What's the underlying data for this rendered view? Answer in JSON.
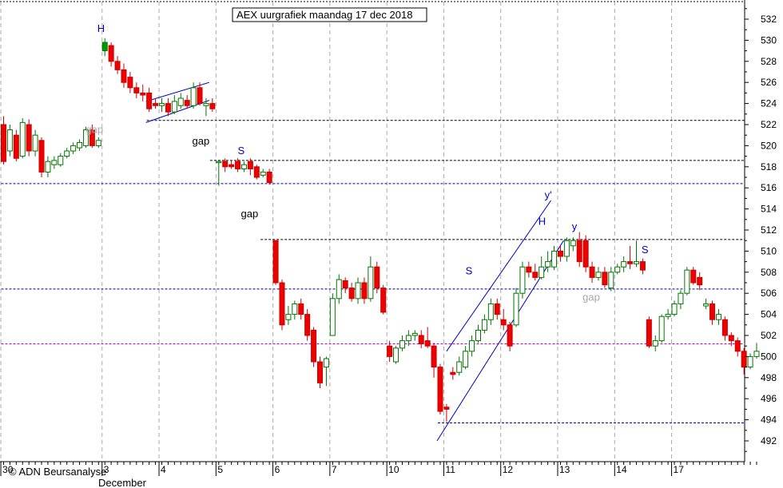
{
  "chart_data": {
    "type": "candlestick",
    "title": "AEX uurgrafiek maandag 17 dec 2018",
    "credit": "© ADN Beursanalyse",
    "month_label": "December",
    "ylim": [
      490,
      533
    ],
    "y_ticks": [
      492,
      494,
      496,
      498,
      500,
      502,
      504,
      506,
      508,
      510,
      512,
      514,
      516,
      518,
      520,
      522,
      524,
      526,
      528,
      530,
      532
    ],
    "x_day_ticks": [
      {
        "label": "30",
        "index": 0
      },
      {
        "label": "3",
        "index": 16
      },
      {
        "label": "4",
        "index": 25
      },
      {
        "label": "5",
        "index": 34
      },
      {
        "label": "6",
        "index": 43
      },
      {
        "label": "7",
        "index": 52
      },
      {
        "label": "10",
        "index": 61
      },
      {
        "label": "11",
        "index": 70
      },
      {
        "label": "12",
        "index": 79
      },
      {
        "label": "13",
        "index": 88
      },
      {
        "label": "14",
        "index": 97
      },
      {
        "label": "17",
        "index": 106
      }
    ],
    "candles": [
      [
        522.0,
        518.5,
        522.8,
        518.2
      ],
      [
        519.5,
        521.5,
        522.0,
        519.0
      ],
      [
        521.0,
        518.8,
        521.5,
        518.5
      ],
      [
        519.0,
        522.2,
        522.6,
        518.8
      ],
      [
        522.0,
        519.5,
        522.5,
        519.0
      ],
      [
        519.5,
        521.0,
        521.5,
        519.0
      ],
      [
        520.5,
        517.5,
        520.8,
        517.0
      ],
      [
        517.5,
        518.5,
        519.0,
        517.0
      ],
      [
        518.2,
        518.6,
        519.0,
        517.8
      ],
      [
        518.2,
        519.0,
        519.3,
        518.0
      ],
      [
        519.0,
        519.5,
        519.8,
        518.8
      ],
      [
        519.5,
        520.0,
        520.3,
        519.2
      ],
      [
        519.8,
        520.3,
        520.6,
        519.5
      ],
      [
        520.0,
        521.5,
        521.8,
        519.8
      ],
      [
        521.5,
        520.0,
        522.0,
        519.8
      ],
      [
        520.0,
        520.5,
        520.8,
        519.8
      ],
      [
        529.0,
        529.8,
        530.2,
        528.5
      ],
      [
        529.5,
        528.0,
        529.8,
        527.5
      ],
      [
        528.0,
        527.2,
        528.5,
        526.8
      ],
      [
        527.2,
        526.0,
        527.8,
        525.5
      ],
      [
        526.5,
        525.5,
        527.0,
        525.0
      ],
      [
        525.5,
        525.0,
        526.0,
        524.5
      ],
      [
        525.0,
        524.8,
        525.8,
        524.2
      ],
      [
        525.0,
        523.5,
        525.5,
        523.2
      ],
      [
        524.0,
        523.8,
        524.5,
        523.5
      ],
      [
        523.8,
        524.0,
        524.5,
        523.2
      ],
      [
        524.0,
        523.2,
        524.5,
        522.8
      ],
      [
        523.2,
        524.2,
        524.8,
        523.0
      ],
      [
        523.8,
        524.5,
        525.0,
        523.5
      ],
      [
        524.3,
        523.8,
        524.8,
        523.5
      ],
      [
        523.8,
        525.5,
        526.0,
        523.5
      ],
      [
        525.5,
        524.0,
        526.0,
        523.8
      ],
      [
        523.8,
        524.0,
        524.5,
        522.8
      ],
      [
        524.0,
        523.5,
        524.5,
        523.2
      ],
      [
        518.5,
        518.5,
        518.6,
        516.2
      ],
      [
        518.5,
        518.0,
        518.8,
        517.5
      ],
      [
        518.2,
        518.0,
        518.6,
        517.8
      ],
      [
        518.5,
        517.8,
        518.8,
        517.5
      ],
      [
        517.8,
        518.2,
        518.5,
        517.5
      ],
      [
        518.5,
        517.8,
        518.8,
        517.2
      ],
      [
        518.0,
        517.0,
        518.2,
        516.8
      ],
      [
        517.2,
        517.5,
        517.8,
        517.0
      ],
      [
        517.5,
        516.5,
        517.8,
        516.3
      ],
      [
        511.0,
        507.0,
        511.0,
        506.8
      ],
      [
        507.0,
        503.0,
        507.3,
        502.5
      ],
      [
        503.5,
        504.0,
        504.8,
        503.0
      ],
      [
        504.0,
        505.0,
        505.3,
        503.5
      ],
      [
        505.0,
        504.0,
        505.5,
        503.5
      ],
      [
        504.0,
        502.0,
        504.5,
        501.5
      ],
      [
        502.5,
        499.5,
        502.8,
        499.0
      ],
      [
        499.5,
        497.5,
        500.0,
        497.0
      ],
      [
        499.0,
        499.8,
        500.0,
        497.2
      ],
      [
        502.0,
        505.5,
        506.0,
        502.0
      ],
      [
        505.5,
        507.3,
        507.8,
        505.0
      ],
      [
        507.2,
        506.5,
        507.5,
        506.0
      ],
      [
        506.5,
        505.5,
        507.0,
        505.2
      ],
      [
        505.5,
        507.0,
        507.5,
        505.0
      ],
      [
        507.0,
        505.5,
        507.5,
        505.0
      ],
      [
        505.5,
        508.5,
        509.5,
        505.2
      ],
      [
        508.5,
        506.5,
        509.0,
        506.0
      ],
      [
        506.5,
        504.2,
        506.8,
        504.0
      ],
      [
        501.0,
        500.0,
        501.5,
        499.5
      ],
      [
        499.5,
        500.8,
        501.0,
        499.3
      ],
      [
        500.8,
        501.5,
        502.0,
        500.5
      ],
      [
        501.5,
        502.0,
        502.5,
        501.0
      ],
      [
        502.0,
        502.2,
        502.5,
        501.5
      ],
      [
        502.0,
        501.2,
        502.5,
        500.8
      ],
      [
        501.5,
        501.0,
        502.8,
        500.8
      ],
      [
        501.0,
        499.0,
        501.3,
        498.0
      ],
      [
        499.0,
        494.8,
        499.3,
        494.5
      ],
      [
        495.2,
        495.0,
        495.5,
        493.8
      ],
      [
        498.5,
        498.3,
        499.0,
        497.8
      ],
      [
        498.5,
        499.5,
        500.0,
        498.2
      ],
      [
        499.0,
        500.5,
        501.0,
        498.8
      ],
      [
        500.5,
        501.5,
        502.0,
        500.0
      ],
      [
        501.5,
        502.5,
        503.0,
        501.3
      ],
      [
        502.5,
        503.5,
        504.0,
        502.2
      ],
      [
        503.5,
        505.0,
        505.5,
        503.0
      ],
      [
        505.0,
        504.0,
        505.5,
        503.5
      ],
      [
        503.5,
        503.0,
        504.5,
        502.5
      ],
      [
        503.0,
        501.0,
        503.3,
        500.5
      ],
      [
        503.0,
        506.0,
        506.5,
        502.8
      ],
      [
        506.0,
        508.5,
        509.0,
        505.5
      ],
      [
        508.5,
        508.0,
        509.0,
        507.5
      ],
      [
        508.0,
        507.5,
        508.8,
        507.2
      ],
      [
        507.5,
        508.5,
        509.5,
        507.3
      ],
      [
        508.5,
        509.0,
        510.0,
        508.0
      ],
      [
        508.5,
        510.0,
        510.5,
        508.2
      ],
      [
        510.0,
        509.5,
        510.5,
        509.0
      ],
      [
        509.5,
        511.0,
        511.3,
        509.0
      ],
      [
        510.5,
        511.0,
        511.3,
        510.0
      ],
      [
        511.0,
        509.0,
        511.8,
        508.5
      ],
      [
        511.0,
        508.5,
        511.5,
        508.0
      ],
      [
        508.5,
        507.5,
        509.0,
        507.0
      ],
      [
        507.5,
        508.0,
        508.5,
        507.2
      ],
      [
        508.0,
        506.8,
        508.5,
        506.5
      ],
      [
        506.5,
        508.0,
        508.5,
        506.2
      ],
      [
        508.0,
        508.5,
        508.8,
        507.8
      ],
      [
        508.5,
        509.0,
        509.5,
        508.0
      ],
      [
        509.0,
        508.8,
        510.5,
        508.3
      ],
      [
        508.8,
        509.0,
        511.0,
        508.5
      ],
      [
        509.0,
        508.2,
        509.3,
        507.8
      ],
      [
        503.5,
        501.0,
        503.8,
        500.8
      ],
      [
        501.0,
        501.5,
        502.0,
        500.5
      ],
      [
        501.5,
        503.8,
        504.0,
        501.3
      ],
      [
        503.8,
        504.0,
        504.5,
        503.5
      ],
      [
        504.0,
        505.0,
        505.3,
        503.8
      ],
      [
        505.0,
        506.0,
        506.3,
        504.5
      ],
      [
        506.0,
        508.2,
        508.5,
        505.8
      ],
      [
        508.2,
        507.0,
        508.5,
        506.8
      ],
      [
        507.5,
        506.8,
        508.0,
        506.3
      ],
      [
        504.8,
        505.0,
        505.5,
        504.5
      ],
      [
        505.0,
        503.5,
        505.3,
        503.0
      ],
      [
        503.5,
        504.0,
        504.5,
        503.0
      ],
      [
        503.5,
        502.0,
        503.8,
        501.5
      ],
      [
        502.0,
        501.5,
        502.3,
        501.0
      ],
      [
        501.5,
        500.5,
        501.8,
        500.0
      ],
      [
        500.5,
        499.0,
        500.8,
        498.3
      ],
      [
        499.0,
        500.0,
        500.3,
        498.8
      ],
      [
        500.0,
        500.5,
        501.3,
        499.8
      ]
    ],
    "horizontal_lines": [
      {
        "y": 522.4,
        "color": "#000000",
        "start_index": 23
      },
      {
        "y": 518.6,
        "color": "#000000",
        "start_index": 33
      },
      {
        "y": 516.4,
        "color": "#0000aa",
        "start_index": 0
      },
      {
        "y": 511.1,
        "color": "#000000",
        "start_index": 41
      },
      {
        "y": 506.4,
        "color": "#0000aa",
        "start_index": 0
      },
      {
        "y": 501.2,
        "color": "#cc00cc",
        "start_index": 0
      },
      {
        "y": 493.7,
        "color": "#0000aa",
        "start_index": 69
      }
    ],
    "trend_lines": [
      {
        "from": [
          22.5,
          524.2
        ],
        "to": [
          32.5,
          526.0
        ]
      },
      {
        "from": [
          22.5,
          522.2
        ],
        "to": [
          32.5,
          524.3
        ]
      },
      {
        "from": [
          68.5,
          492.0
        ],
        "to": [
          88.5,
          511.0
        ]
      },
      {
        "from": [
          70.0,
          500.5
        ],
        "to": [
          86.5,
          514.8
        ]
      }
    ],
    "annotations": [
      {
        "text": "H",
        "x": 14.8,
        "y": 530.8,
        "color": "#0000cc"
      },
      {
        "text": "gap",
        "x": 13.0,
        "y": 521.2,
        "color": "#aaaaaa"
      },
      {
        "text": "gap",
        "x": 29.8,
        "y": 520.1,
        "color": "#000000"
      },
      {
        "text": "S",
        "x": 37.0,
        "y": 519.2,
        "color": "#0000cc"
      },
      {
        "text": "gap",
        "x": 37.5,
        "y": 513.2,
        "color": "#000000"
      },
      {
        "text": "S",
        "x": 73.0,
        "y": 507.8,
        "color": "#0000cc"
      },
      {
        "text": "y'",
        "x": 85.5,
        "y": 515.0,
        "color": "#0000cc"
      },
      {
        "text": "H",
        "x": 84.5,
        "y": 512.5,
        "color": "#0000cc"
      },
      {
        "text": "y",
        "x": 89.8,
        "y": 512.0,
        "color": "#0000cc"
      },
      {
        "text": "gap",
        "x": 91.5,
        "y": 505.3,
        "color": "#aaaaaa"
      },
      {
        "text": "S",
        "x": 100.8,
        "y": 509.8,
        "color": "#0000cc"
      }
    ],
    "colors": {
      "up": "#ffffff",
      "up_border": "#007700",
      "down": "#ee0000",
      "down_border": "#cc0000",
      "highlight_up": "#009900"
    }
  }
}
